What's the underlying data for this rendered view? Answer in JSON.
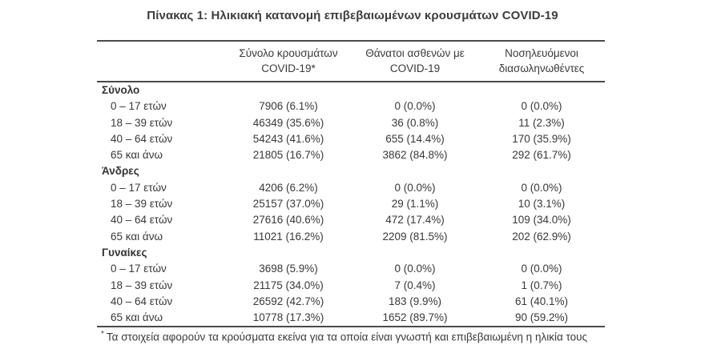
{
  "title": "Πίνακας 1: Ηλικιακή κατανομή επιβεβαιωμένων κρουσμάτων COVID-19",
  "table": {
    "columns": [
      {
        "line1": "Σύνολο κρουσμάτων",
        "line2": "COVID-19*"
      },
      {
        "line1": "Θάνατοι ασθενών με",
        "line2": "COVID-19"
      },
      {
        "line1": "Νοσηλευόμενοι",
        "line2": "διασωληνωθέντες"
      }
    ],
    "sections": [
      {
        "label": "Σύνολο",
        "rows": [
          {
            "age": "0 – 17 ετών",
            "cases": "7906 (6.1%)",
            "deaths": "0 (0.0%)",
            "intubated": "0 (0.0%)"
          },
          {
            "age": "18 – 39 ετών",
            "cases": "46349 (35.6%)",
            "deaths": "36 (0.8%)",
            "intubated": "11 (2.3%)"
          },
          {
            "age": "40 – 64 ετών",
            "cases": "54243 (41.6%)",
            "deaths": "655 (14.4%)",
            "intubated": "170 (35.9%)"
          },
          {
            "age": "65 και άνω",
            "cases": "21805 (16.7%)",
            "deaths": "3862 (84.8%)",
            "intubated": "292 (61.7%)"
          }
        ]
      },
      {
        "label": "Άνδρες",
        "rows": [
          {
            "age": "0 – 17 ετών",
            "cases": "4206 (6.2%)",
            "deaths": "0 (0.0%)",
            "intubated": "0 (0.0%)"
          },
          {
            "age": "18 – 39 ετών",
            "cases": "25157 (37.0%)",
            "deaths": "29 (1.1%)",
            "intubated": "10 (3.1%)"
          },
          {
            "age": "40 – 64 ετών",
            "cases": "27616 (40.6%)",
            "deaths": "472 (17.4%)",
            "intubated": "109 (34.0%)"
          },
          {
            "age": "65 και άνω",
            "cases": "11021 (16.2%)",
            "deaths": "2209 (81.5%)",
            "intubated": "202 (62.9%)"
          }
        ]
      },
      {
        "label": "Γυναίκες",
        "rows": [
          {
            "age": "0 – 17 ετών",
            "cases": "3698 (5.9%)",
            "deaths": "0 (0.0%)",
            "intubated": "0 (0.0%)"
          },
          {
            "age": "18 – 39 ετών",
            "cases": "21175 (34.0%)",
            "deaths": "7 (0.4%)",
            "intubated": "1 (0.7%)"
          },
          {
            "age": "40 – 64 ετών",
            "cases": "26592 (42.7%)",
            "deaths": "183 (9.9%)",
            "intubated": "61 (40.1%)"
          },
          {
            "age": "65 και άνω",
            "cases": "10778 (17.3%)",
            "deaths": "1652 (89.7%)",
            "intubated": "90 (59.2%)"
          }
        ]
      }
    ]
  },
  "footnote": {
    "marker": "*",
    "text": "Τα στοιχεία αφορούν τα κρούσματα εκείνα για τα οποία είναι γνωστή και επιβεβαιωμένη η ηλικία τους"
  },
  "colors": {
    "text": "#3a3a3a",
    "rule": "#4a4a4a",
    "background": "#ffffff"
  },
  "chart_data": {
    "type": "table",
    "title": "Πίνακας 1: Ηλικιακή κατανομή επιβεβαιωμένων κρουσμάτων COVID-19",
    "columns": [
      "Σύνολο κρουσμάτων COVID-19*",
      "Θάνατοι ασθενών με COVID-19",
      "Νοσηλευόμενοι διασωληνωθέντες"
    ],
    "row_groups": [
      {
        "name": "Σύνολο",
        "rows": [
          {
            "age_group": "0 – 17 ετών",
            "cases": 7906,
            "cases_pct": 6.1,
            "deaths": 0,
            "deaths_pct": 0.0,
            "intubated": 0,
            "intubated_pct": 0.0
          },
          {
            "age_group": "18 – 39 ετών",
            "cases": 46349,
            "cases_pct": 35.6,
            "deaths": 36,
            "deaths_pct": 0.8,
            "intubated": 11,
            "intubated_pct": 2.3
          },
          {
            "age_group": "40 – 64 ετών",
            "cases": 54243,
            "cases_pct": 41.6,
            "deaths": 655,
            "deaths_pct": 14.4,
            "intubated": 170,
            "intubated_pct": 35.9
          },
          {
            "age_group": "65 και άνω",
            "cases": 21805,
            "cases_pct": 16.7,
            "deaths": 3862,
            "deaths_pct": 84.8,
            "intubated": 292,
            "intubated_pct": 61.7
          }
        ]
      },
      {
        "name": "Άνδρες",
        "rows": [
          {
            "age_group": "0 – 17 ετών",
            "cases": 4206,
            "cases_pct": 6.2,
            "deaths": 0,
            "deaths_pct": 0.0,
            "intubated": 0,
            "intubated_pct": 0.0
          },
          {
            "age_group": "18 – 39 ετών",
            "cases": 25157,
            "cases_pct": 37.0,
            "deaths": 29,
            "deaths_pct": 1.1,
            "intubated": 10,
            "intubated_pct": 3.1
          },
          {
            "age_group": "40 – 64 ετών",
            "cases": 27616,
            "cases_pct": 40.6,
            "deaths": 472,
            "deaths_pct": 17.4,
            "intubated": 109,
            "intubated_pct": 34.0
          },
          {
            "age_group": "65 και άνω",
            "cases": 11021,
            "cases_pct": 16.2,
            "deaths": 2209,
            "deaths_pct": 81.5,
            "intubated": 202,
            "intubated_pct": 62.9
          }
        ]
      },
      {
        "name": "Γυναίκες",
        "rows": [
          {
            "age_group": "0 – 17 ετών",
            "cases": 3698,
            "cases_pct": 5.9,
            "deaths": 0,
            "deaths_pct": 0.0,
            "intubated": 0,
            "intubated_pct": 0.0
          },
          {
            "age_group": "18 – 39 ετών",
            "cases": 21175,
            "cases_pct": 34.0,
            "deaths": 7,
            "deaths_pct": 0.4,
            "intubated": 1,
            "intubated_pct": 0.7
          },
          {
            "age_group": "40 – 64 ετών",
            "cases": 26592,
            "cases_pct": 42.7,
            "deaths": 183,
            "deaths_pct": 9.9,
            "intubated": 61,
            "intubated_pct": 40.1
          },
          {
            "age_group": "65 και άνω",
            "cases": 10778,
            "cases_pct": 17.3,
            "deaths": 1652,
            "deaths_pct": 89.7,
            "intubated": 90,
            "intubated_pct": 59.2
          }
        ]
      }
    ],
    "footnote": "* Τα στοιχεία αφορούν τα κρούσματα εκείνα για τα οποία είναι γνωστή και επιβεβαιωμένη η ηλικία τους"
  }
}
